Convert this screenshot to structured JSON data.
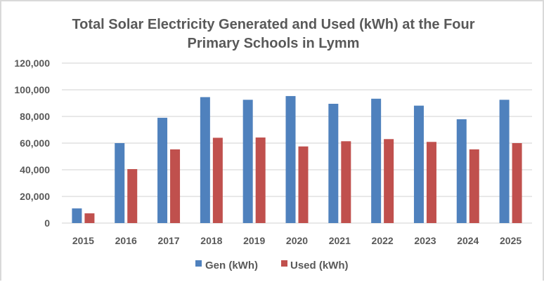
{
  "chart_data": {
    "type": "bar",
    "title": "Total Solar Electricity Generated and Used (kWh) at the Four Primary Schools in Lymm",
    "title_lines": [
      "Total Solar Electricity Generated and Used (kWh) at the Four",
      "Primary Schools in Lymm"
    ],
    "xlabel": "",
    "ylabel": "",
    "categories": [
      "2015",
      "2016",
      "2017",
      "2018",
      "2019",
      "2020",
      "2021",
      "2022",
      "2023",
      "2024",
      "2025"
    ],
    "series": [
      {
        "name": "Gen (kWh)",
        "color": "#4f81bd",
        "values": [
          11000,
          60000,
          79000,
          94500,
          92500,
          95300,
          89500,
          93300,
          88100,
          77900,
          92500
        ]
      },
      {
        "name": "Used (kWh)",
        "color": "#c0504d",
        "values": [
          7300,
          40500,
          55300,
          64000,
          64200,
          57500,
          61400,
          63000,
          60900,
          55300,
          60000
        ]
      }
    ],
    "ylim": [
      0,
      120000
    ],
    "yticks": [
      0,
      20000,
      40000,
      60000,
      80000,
      100000,
      120000
    ],
    "ytick_labels": [
      "0",
      "20,000",
      "40,000",
      "60,000",
      "80,000",
      "100,000",
      "120,000"
    ],
    "grid": true,
    "legend": {
      "position": "bottom",
      "entries": [
        "Gen (kWh)",
        "Used (kWh)"
      ]
    }
  }
}
